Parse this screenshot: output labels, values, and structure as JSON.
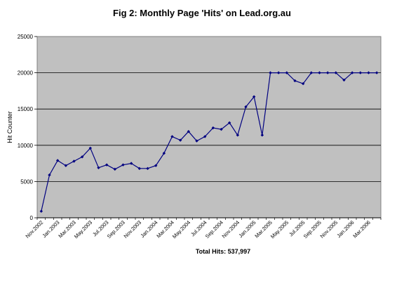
{
  "chart_data": {
    "type": "line",
    "title": "Fig 2: Monthly Page 'Hits' on Lead.org.au",
    "xlabel": "",
    "ylabel": "Hit Counter",
    "footer": "Total Hits: 537,997",
    "ylim": [
      0,
      25000
    ],
    "yticks": [
      "0",
      "5000",
      "10000",
      "15000",
      "20000",
      "25000"
    ],
    "grid": true,
    "legend": "none",
    "colors": {
      "plot_bg": "#c0c0c0",
      "line": "#000080",
      "marker": "#000080",
      "grid": "#000000"
    },
    "x": [
      "Nov.2002",
      "Dec.2002",
      "Jan.2003",
      "Feb.2003",
      "Mar.2003",
      "Apr.2003",
      "May.2003",
      "Jun.2003",
      "Jul.2003",
      "Aug.2003",
      "Sep.2003",
      "Oct.2003",
      "Nov.2003",
      "Dec.2003",
      "Jan.2004",
      "Feb.2004",
      "Mar.2004",
      "Apr.2004",
      "May.2004",
      "Jun.2004",
      "Jul.2004",
      "Aug.2004",
      "Sep.2004",
      "Oct.2004",
      "Nov.2004",
      "Dec.2004",
      "Jan.2005",
      "Feb.2005",
      "Mar.2005",
      "Apr.2005",
      "May.2005",
      "Jun.2005",
      "Jul.2005",
      "Aug.2005",
      "Sep.2005",
      "Oct.2005",
      "Nov.2005",
      "Dec.2005",
      "Jan.2006",
      "Feb.2006",
      "Mar.2006",
      "Apr.2006"
    ],
    "xtick_labels": [
      "Nov.2002",
      "Jan.2003",
      "Mar.2003",
      "May.2003",
      "Jul.2003",
      "Sep.2003",
      "Nov.2003",
      "Jan.2004",
      "Mar.2004",
      "May.2004",
      "Jul.2004",
      "Sep.2004",
      "Nov.2004",
      "Jan.2005",
      "Mar.2005",
      "May.2005",
      "Jul.2005",
      "Sep.2005",
      "Nov.2005",
      "Jan.2006",
      "Mar.2006"
    ],
    "values": [
      900,
      5900,
      7900,
      7200,
      7800,
      8400,
      9600,
      6900,
      7300,
      6700,
      7300,
      7500,
      6800,
      6800,
      7200,
      8900,
      11200,
      10700,
      11900,
      10600,
      11200,
      12400,
      12200,
      13100,
      11400,
      15300,
      16700,
      11400,
      20000,
      20000,
      20000,
      18900,
      18500,
      20000,
      20000,
      20000,
      20000,
      19000,
      20000,
      20000,
      20000,
      20000
    ]
  }
}
